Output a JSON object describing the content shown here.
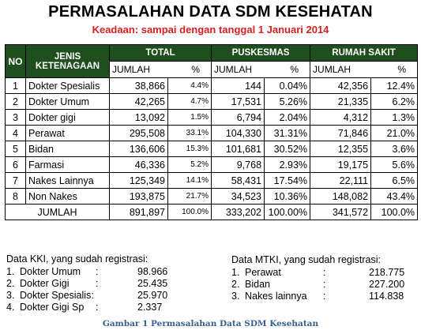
{
  "title": "PERMASALAHAN DATA SDM KESEHATAN",
  "subtitle": "Keadaan: sampai dengan tanggal 1 Januari 2014",
  "table": {
    "headers": {
      "no": "NO",
      "jenis_1": "JENIS",
      "jenis_2": "KETENAGAAN",
      "total": "TOTAL",
      "puskesmas": "PUSKESMAS",
      "rumah_sakit": "RUMAH SAKIT",
      "jumlah": "JUMLAH",
      "pct": "%"
    },
    "rows": [
      {
        "no": "1",
        "jenis": "Dokter Spesialis",
        "t_j": "38,866",
        "t_p": "4.4%",
        "p_j": "144",
        "p_p": "0.04%",
        "r_j": "42,356",
        "r_p": "12.4%"
      },
      {
        "no": "2",
        "jenis": "Dokter Umum",
        "t_j": "42,265",
        "t_p": "4.7%",
        "p_j": "17,531",
        "p_p": "5.26%",
        "r_j": "21,335",
        "r_p": "6.2%"
      },
      {
        "no": "3",
        "jenis": "Dokter gigi",
        "t_j": "13,092",
        "t_p": "1.5%",
        "p_j": "6,794",
        "p_p": "2.04%",
        "r_j": "4,312",
        "r_p": "1.3%"
      },
      {
        "no": "4",
        "jenis": "Perawat",
        "t_j": "295,508",
        "t_p": "33.1%",
        "p_j": "104,330",
        "p_p": "31.31%",
        "r_j": "71,846",
        "r_p": "21.0%"
      },
      {
        "no": "5",
        "jenis": "Bidan",
        "t_j": "136,606",
        "t_p": "15.3%",
        "p_j": "101,681",
        "p_p": "30.52%",
        "r_j": "12,355",
        "r_p": "3.6%"
      },
      {
        "no": "6",
        "jenis": "Farmasi",
        "t_j": "46,336",
        "t_p": "5.2%",
        "p_j": "9,768",
        "p_p": "2.93%",
        "r_j": "19,175",
        "r_p": "5.6%"
      },
      {
        "no": "7",
        "jenis": "Nakes Lainnya",
        "t_j": "125,349",
        "t_p": "14.1%",
        "p_j": "58,431",
        "p_p": "17.54%",
        "r_j": "22,111",
        "r_p": "6.5%"
      },
      {
        "no": "8",
        "jenis": "Non Nakes",
        "t_j": "193,875",
        "t_p": "21.7%",
        "p_j": "34,523",
        "p_p": "10.36%",
        "r_j": "148,082",
        "r_p": "43.4%"
      }
    ],
    "total_row": {
      "label": "JUMLAH",
      "t_j": "891,897",
      "t_p": "100.0%",
      "p_j": "333,202",
      "p_p": "100.00%",
      "r_j": "341,572",
      "r_p": "100.0%"
    }
  },
  "kki": {
    "heading": "Data KKI, yang sudah registrasi:",
    "items": [
      {
        "n": "1.",
        "label": "Dokter Umum",
        "sep": ":",
        "value": "98.966"
      },
      {
        "n": "2.",
        "label": "Dokter Gigi",
        "sep": ":",
        "value": "25.435"
      },
      {
        "n": "3.",
        "label": "Dokter Spesialis:",
        "sep": "",
        "value": "25.970"
      },
      {
        "n": "4.",
        "label": "Dokter Gigi Sp",
        "sep": ":",
        "value": "2.337"
      }
    ]
  },
  "mtki": {
    "heading": "Data MTKI, yang sudah registrasi:",
    "items": [
      {
        "n": "1.",
        "label": "Perawat",
        "sep": ":",
        "value": "218.775"
      },
      {
        "n": "2.",
        "label": "Bidan",
        "sep": ":",
        "value": "227.200"
      },
      {
        "n": "3.",
        "label": "Nakes lainnya",
        "sep": ":",
        "value": "114.838"
      }
    ]
  },
  "caption": "Gambar 1 Permasalahan Data SDM Kesehatan"
}
